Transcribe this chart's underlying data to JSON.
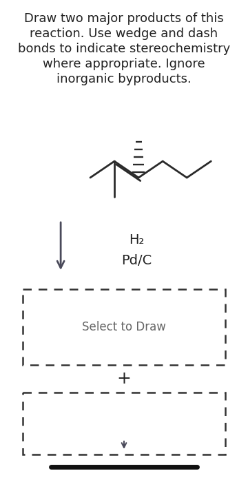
{
  "bg_color": "#ffffff",
  "text_color": "#222222",
  "mol_color": "#2a2a2a",
  "arrow_color": "#4a4a5a",
  "title_lines": [
    "Draw two major products of this",
    "reaction. Use wedge and dash",
    "bonds to indicate stereochemistry",
    "where appropriate. Ignore",
    "inorganic byproducts."
  ],
  "title_fontsize": 13.0,
  "reagent1": "H₂",
  "reagent2": "Pd/C",
  "select_text": "Select to Draw",
  "plus_text": "+"
}
